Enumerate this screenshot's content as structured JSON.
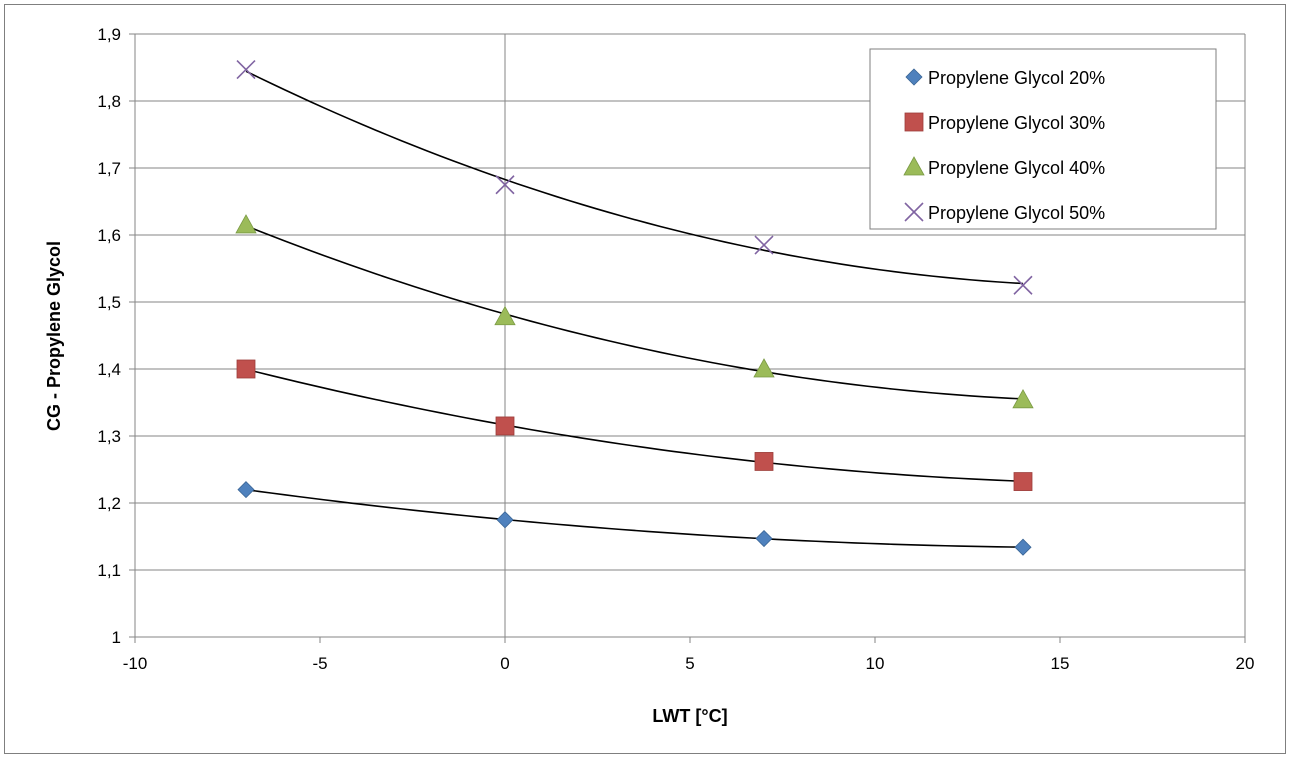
{
  "chart_data": {
    "type": "scatter",
    "xlabel": "LWT [°C]",
    "ylabel": "CG - Propylene Glycol",
    "xlim": [
      -10,
      20
    ],
    "ylim": [
      1,
      1.9
    ],
    "x_ticks": [
      "-10",
      "-5",
      "0",
      "5",
      "10",
      "15",
      "20"
    ],
    "x_tick_values": [
      -10,
      -5,
      0,
      5,
      10,
      15,
      20
    ],
    "y_ticks": [
      "1",
      "1,1",
      "1,2",
      "1,3",
      "1,4",
      "1,5",
      "1,6",
      "1,7",
      "1,8",
      "1,9"
    ],
    "y_tick_values": [
      1,
      1.1,
      1.2,
      1.3,
      1.4,
      1.5,
      1.6,
      1.7,
      1.8,
      1.9
    ],
    "grid": true,
    "legend_position": "top-right",
    "trendline": "polynomial",
    "series": [
      {
        "name": "Propylene Glycol 20%",
        "marker": "diamond",
        "color": "#4f81bd",
        "x": [
          -7,
          0,
          7,
          14
        ],
        "y": [
          1.22,
          1.175,
          1.147,
          1.134
        ]
      },
      {
        "name": "Propylene Glycol 30%",
        "marker": "square",
        "color": "#c0504d",
        "x": [
          -7,
          0,
          7,
          14
        ],
        "y": [
          1.4,
          1.315,
          1.262,
          1.232
        ]
      },
      {
        "name": "Propylene Glycol 40%",
        "marker": "triangle",
        "color": "#9bbb59",
        "x": [
          -7,
          0,
          7,
          14
        ],
        "y": [
          1.615,
          1.478,
          1.4,
          1.354
        ]
      },
      {
        "name": "Propylene Glycol 50%",
        "marker": "x",
        "color": "#8064a2",
        "x": [
          -7,
          0,
          7,
          14
        ],
        "y": [
          1.847,
          1.675,
          1.585,
          1.525
        ]
      }
    ]
  }
}
